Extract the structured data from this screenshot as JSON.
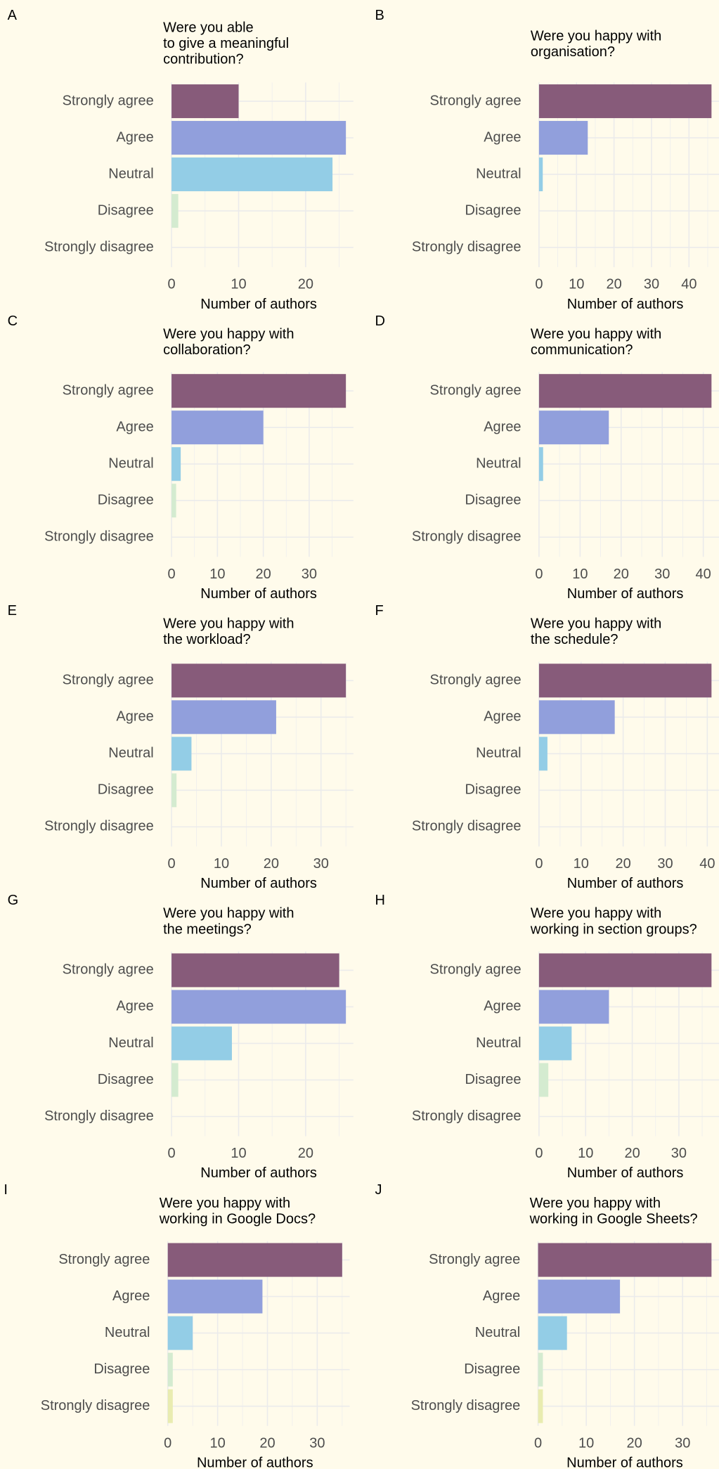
{
  "chart_data": [
    {
      "type": "bar",
      "panel_label": "A",
      "title": [
        "Were you able",
        "to give a meaningful",
        "contribution?"
      ],
      "categories": [
        "Strongly agree",
        "Agree",
        "Neutral",
        "Disagree",
        "Strongly disagree"
      ],
      "values": [
        10,
        26,
        24,
        1,
        0
      ],
      "colors": [
        "#875b7a",
        "#919fdc",
        "#93cde6",
        "#d4ebd0",
        "#e9ecb0"
      ],
      "xlim": [
        0,
        26
      ],
      "xticks": [
        0,
        10,
        20
      ],
      "xlabel": "Number of authors",
      "grid": true
    },
    {
      "type": "bar",
      "panel_label": "B",
      "title": [
        "Were you happy with",
        "organisation?"
      ],
      "categories": [
        "Strongly agree",
        "Agree",
        "Neutral",
        "Disagree",
        "Strongly disagree"
      ],
      "values": [
        46,
        13,
        1,
        0,
        0
      ],
      "colors": [
        "#875b7a",
        "#919fdc",
        "#93cde6",
        "#d4ebd0",
        "#e9ecb0"
      ],
      "xlim": [
        0,
        46
      ],
      "xticks": [
        0,
        10,
        20,
        30,
        40
      ],
      "xlabel": "Number of authors",
      "grid": true
    },
    {
      "type": "bar",
      "panel_label": "C",
      "title": [
        "Were you happy with",
        "collaboration?"
      ],
      "categories": [
        "Strongly agree",
        "Agree",
        "Neutral",
        "Disagree",
        "Strongly disagree"
      ],
      "values": [
        38,
        20,
        2,
        1,
        0
      ],
      "colors": [
        "#875b7a",
        "#919fdc",
        "#93cde6",
        "#d4ebd0",
        "#e9ecb0"
      ],
      "xlim": [
        0,
        38
      ],
      "xticks": [
        0,
        10,
        20,
        30
      ],
      "xlabel": "Number of authors",
      "grid": true
    },
    {
      "type": "bar",
      "panel_label": "D",
      "title": [
        "Were you happy with",
        "communication?"
      ],
      "categories": [
        "Strongly agree",
        "Agree",
        "Neutral",
        "Disagree",
        "Strongly disagree"
      ],
      "values": [
        42,
        17,
        1,
        0,
        0
      ],
      "colors": [
        "#875b7a",
        "#919fdc",
        "#93cde6",
        "#d4ebd0",
        "#e9ecb0"
      ],
      "xlim": [
        0,
        42
      ],
      "xticks": [
        0,
        10,
        20,
        30,
        40
      ],
      "xlabel": "Number of authors",
      "grid": true
    },
    {
      "type": "bar",
      "panel_label": "E",
      "title": [
        "Were you happy with",
        "the workload?"
      ],
      "categories": [
        "Strongly agree",
        "Agree",
        "Neutral",
        "Disagree",
        "Strongly disagree"
      ],
      "values": [
        35,
        21,
        4,
        1,
        0
      ],
      "colors": [
        "#875b7a",
        "#919fdc",
        "#93cde6",
        "#d4ebd0",
        "#e9ecb0"
      ],
      "xlim": [
        0,
        35
      ],
      "xticks": [
        0,
        10,
        20,
        30
      ],
      "xlabel": "Number of authors",
      "grid": true
    },
    {
      "type": "bar",
      "panel_label": "F",
      "title": [
        "Were you happy with",
        "the schedule?"
      ],
      "categories": [
        "Strongly agree",
        "Agree",
        "Neutral",
        "Disagree",
        "Strongly disagree"
      ],
      "values": [
        41,
        18,
        2,
        0,
        0
      ],
      "colors": [
        "#875b7a",
        "#919fdc",
        "#93cde6",
        "#d4ebd0",
        "#e9ecb0"
      ],
      "xlim": [
        0,
        41
      ],
      "xticks": [
        0,
        10,
        20,
        30,
        40
      ],
      "xlabel": "Number of authors",
      "grid": true
    },
    {
      "type": "bar",
      "panel_label": "G",
      "title": [
        "Were you happy with",
        "the meetings?"
      ],
      "categories": [
        "Strongly agree",
        "Agree",
        "Neutral",
        "Disagree",
        "Strongly disagree"
      ],
      "values": [
        25,
        26,
        9,
        1,
        0
      ],
      "colors": [
        "#875b7a",
        "#919fdc",
        "#93cde6",
        "#d4ebd0",
        "#e9ecb0"
      ],
      "xlim": [
        0,
        26
      ],
      "xticks": [
        0,
        10,
        20
      ],
      "xlabel": "Number of authors",
      "grid": true
    },
    {
      "type": "bar",
      "panel_label": "H",
      "title": [
        "Were you happy with",
        "working in section groups?"
      ],
      "categories": [
        "Strongly agree",
        "Agree",
        "Neutral",
        "Disagree",
        "Strongly disagree"
      ],
      "values": [
        37,
        15,
        7,
        2,
        0
      ],
      "colors": [
        "#875b7a",
        "#919fdc",
        "#93cde6",
        "#d4ebd0",
        "#e9ecb0"
      ],
      "xlim": [
        0,
        37
      ],
      "xticks": [
        0,
        10,
        20,
        30
      ],
      "xlabel": "Number of authors",
      "grid": true
    },
    {
      "type": "bar",
      "panel_label": "I",
      "title": [
        "Were you happy with",
        "working in Google Docs?"
      ],
      "categories": [
        "Strongly agree",
        "Agree",
        "Neutral",
        "Disagree",
        "Strongly disagree"
      ],
      "values": [
        35,
        19,
        5,
        1,
        1
      ],
      "colors": [
        "#875b7a",
        "#919fdc",
        "#93cde6",
        "#d4ebd0",
        "#e9ecb0"
      ],
      "xlim": [
        0,
        35
      ],
      "xticks": [
        0,
        10,
        20,
        30
      ],
      "xlabel": "Number of authors",
      "grid": true
    },
    {
      "type": "bar",
      "panel_label": "J",
      "title": [
        "Were you happy with",
        "working in Google Sheets?"
      ],
      "categories": [
        "Strongly agree",
        "Agree",
        "Neutral",
        "Disagree",
        "Strongly disagree"
      ],
      "values": [
        36,
        17,
        6,
        1,
        1
      ],
      "colors": [
        "#875b7a",
        "#919fdc",
        "#93cde6",
        "#d4ebd0",
        "#e9ecb0"
      ],
      "xlim": [
        0,
        36
      ],
      "xticks": [
        0,
        10,
        20,
        30
      ],
      "xlabel": "Number of authors",
      "grid": true
    }
  ]
}
